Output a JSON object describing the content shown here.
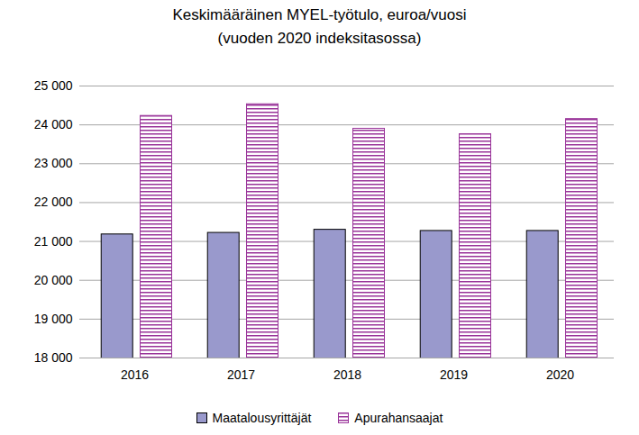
{
  "chart_data": {
    "type": "bar",
    "title": "Keskimääräinen MYEL-työtulo, euroa/vuosi",
    "subtitle": "(vuoden 2020 indeksitasossa)",
    "categories": [
      "2016",
      "2017",
      "2018",
      "2019",
      "2020"
    ],
    "series": [
      {
        "name": "Maatalousyrittäjät",
        "color": "#9999cc",
        "values": [
          21180,
          21220,
          21300,
          21270,
          21270
        ]
      },
      {
        "name": "Apurahansaajat",
        "color": "#993399",
        "values": [
          24230,
          24530,
          23900,
          23760,
          24150
        ]
      }
    ],
    "ylim": [
      18000,
      25000
    ],
    "yticks": [
      {
        "value": 18000,
        "label": "18 000"
      },
      {
        "value": 19000,
        "label": "19 000"
      },
      {
        "value": 20000,
        "label": "20 000"
      },
      {
        "value": 21000,
        "label": "21 000"
      },
      {
        "value": 22000,
        "label": "22 000"
      },
      {
        "value": 23000,
        "label": "23 000"
      },
      {
        "value": 24000,
        "label": "24 000"
      },
      {
        "value": 25000,
        "label": "25 000"
      }
    ],
    "grid": true,
    "legend": "bottom"
  }
}
